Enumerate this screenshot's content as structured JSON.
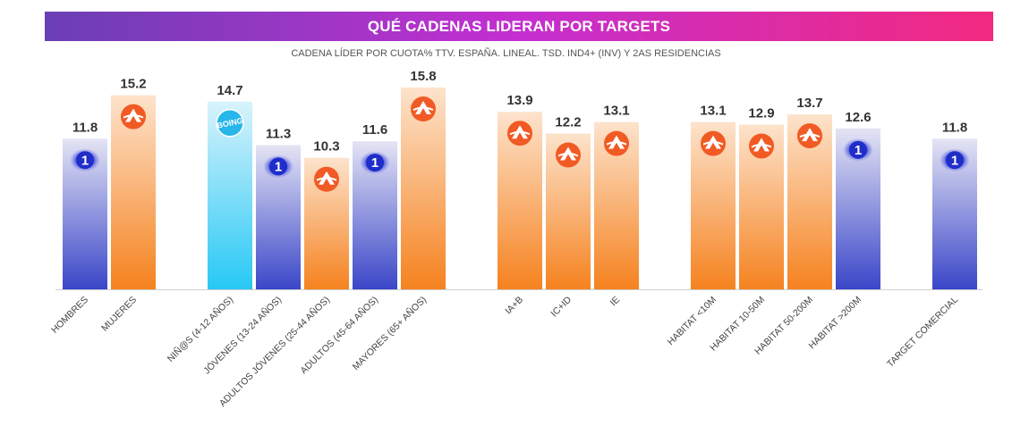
{
  "header": {
    "title": "QUÉ CADENAS LIDERAN POR TARGETS",
    "subtitle": "CADENA LÍDER POR CUOTA% TTV. ESPAÑA. LINEAL. TSD. IND4+ (INV) Y 2AS RESIDENCIAS"
  },
  "colors": {
    "banner_start": "#6a3fb5",
    "banner_end": "#f2297f",
    "tve_top": "#e4e4f4",
    "tve_bottom": "#3a46c8",
    "antena3_top": "#fde3cc",
    "antena3_bottom": "#f5821f",
    "boing_top": "#d8f3fb",
    "boing_bottom": "#27c8f5",
    "antena3_logo": "#f15a24"
  },
  "chart_data": {
    "type": "bar",
    "title": "QUÉ CADENAS LIDERAN POR TARGETS",
    "subtitle": "CADENA LÍDER POR CUOTA% TTV. ESPAÑA. LINEAL. TSD. IND4+ (INV) Y 2AS RESIDENCIAS",
    "xlabel": "",
    "ylabel": "",
    "ylim": [
      0,
      16
    ],
    "grid": false,
    "groups": [
      [
        "HOMBRES",
        "MUJERES"
      ],
      [
        "NIÑ@S (4-12 AÑOS)",
        "JÓVENES (13-24 AÑOS)",
        "ADULTOS JÓVENES (25-44 AÑOS)",
        "ADULTOS (45-64 AÑOS)",
        "MAYORES (65+ AÑOS)"
      ],
      [
        "IA+B",
        "IC+ID",
        "IE"
      ],
      [
        "HABITAT <10M",
        "HABITAT 10-50M",
        "HABITAT 50-200M",
        "HABITAT >200M"
      ],
      [
        "TARGET COMERCIAL"
      ]
    ],
    "categories": [
      "HOMBRES",
      "MUJERES",
      "NIÑ@S (4-12 AÑOS)",
      "JÓVENES (13-24 AÑOS)",
      "ADULTOS JÓVENES (25-44 AÑOS)",
      "ADULTOS (45-64 AÑOS)",
      "MAYORES (65+ AÑOS)",
      "IA+B",
      "IC+ID",
      "IE",
      "HABITAT <10M",
      "HABITAT 10-50M",
      "HABITAT 50-200M",
      "HABITAT >200M",
      "TARGET COMERCIAL"
    ],
    "values": [
      11.8,
      15.2,
      14.7,
      11.3,
      10.3,
      11.6,
      15.8,
      13.9,
      12.2,
      13.1,
      13.1,
      12.9,
      13.7,
      12.6,
      11.8
    ],
    "value_labels": [
      "11.8",
      "15.2",
      "14.7",
      "11.3",
      "10.3",
      "11.6",
      "15.8",
      "13.9",
      "12.2",
      "13.1",
      "13.1",
      "12.9",
      "13.7",
      "12.6",
      "11.8"
    ],
    "leader_channel": [
      "la1",
      "antena3",
      "boing",
      "la1",
      "antena3",
      "la1",
      "antena3",
      "antena3",
      "antena3",
      "antena3",
      "antena3",
      "antena3",
      "antena3",
      "la1",
      "la1"
    ],
    "channel_logos": {
      "la1": "1",
      "boing": "BOING"
    }
  }
}
